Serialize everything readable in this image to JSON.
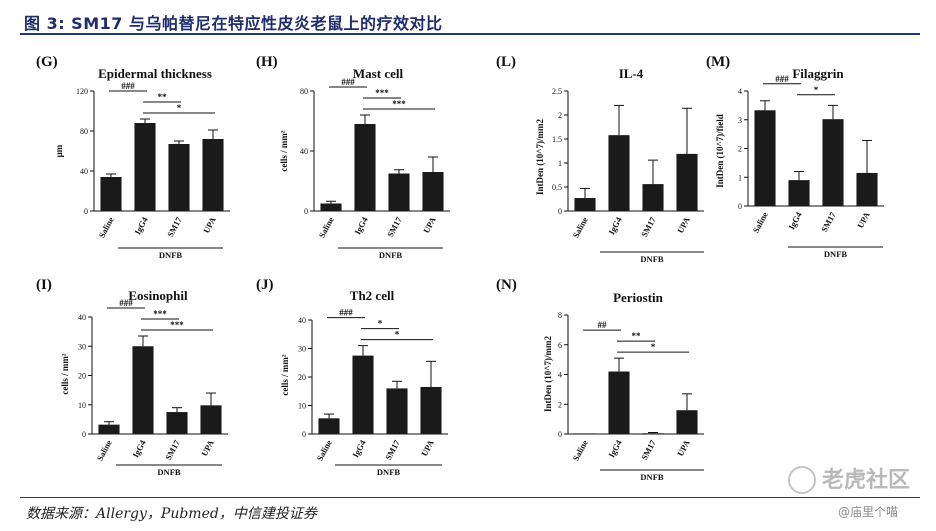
{
  "header": {
    "title": "图 3: SM17 与乌帕替尼在特应性皮炎老鼠上的疗效对比"
  },
  "footer": {
    "source": "数据来源：Allergy，Pubmed，中信建投证券"
  },
  "watermark": {
    "brand": "老虎社区",
    "user": "@庙里个喵"
  },
  "colors": {
    "bar": "#1a1a1a",
    "title": "#1f2d6b",
    "rule": "#1f3a7a"
  },
  "chart_data": [
    {
      "panel": "(G)",
      "title": "Epidermal thickness",
      "type": "bar",
      "ylabel": "μm",
      "ylim": [
        0,
        120
      ],
      "yticks": [
        "0",
        "40",
        "80",
        "120"
      ],
      "categories": [
        "Saline",
        "IgG4",
        "SM17",
        "UPA"
      ],
      "values": [
        34,
        88,
        67,
        72
      ],
      "errors": [
        3,
        4,
        3,
        9
      ],
      "group_label": "DNFB",
      "annotations": [
        {
          "from": 0,
          "to": 1,
          "label": "###"
        },
        {
          "from": 1,
          "to": 2,
          "label": "**"
        },
        {
          "from": 1,
          "to": 3,
          "label": "*"
        }
      ]
    },
    {
      "panel": "(H)",
      "title": "Mast cell",
      "type": "bar",
      "ylabel": "cells / mm²",
      "ylim": [
        0,
        80
      ],
      "yticks": [
        "0",
        "40",
        "80"
      ],
      "categories": [
        "Saline",
        "IgG4",
        "SM17",
        "UPA"
      ],
      "values": [
        5,
        58,
        25,
        26
      ],
      "errors": [
        1.5,
        6,
        2.5,
        10
      ],
      "group_label": "DNFB",
      "annotations": [
        {
          "from": 0,
          "to": 1,
          "label": "###"
        },
        {
          "from": 1,
          "to": 2,
          "label": "***"
        },
        {
          "from": 1,
          "to": 3,
          "label": "***"
        }
      ]
    },
    {
      "panel": "(L)",
      "title": "IL-4",
      "type": "bar",
      "ylabel": "IntDen (10^7)/mm2",
      "ylim": [
        0,
        2.5
      ],
      "yticks": [
        "0",
        "0.5",
        "1",
        "1.5",
        "2",
        "2.5"
      ],
      "categories": [
        "Saline",
        "IgG4",
        "SM17",
        "UPA"
      ],
      "values": [
        0.27,
        1.58,
        0.56,
        1.19
      ],
      "errors": [
        0.2,
        0.62,
        0.5,
        0.95
      ],
      "group_label": "DNFB",
      "annotations": []
    },
    {
      "panel": "(M)",
      "title": "Filaggrin",
      "type": "bar",
      "ylabel": "IntDen (10^7)/field",
      "ylim": [
        0,
        4
      ],
      "yticks": [
        "0",
        "1",
        "2",
        "3",
        "4"
      ],
      "categories": [
        "Saline",
        "IgG4",
        "SM17",
        "UPA"
      ],
      "values": [
        3.33,
        0.9,
        3.02,
        1.15
      ],
      "errors": [
        0.33,
        0.3,
        0.48,
        1.13
      ],
      "group_label": "DNFB",
      "annotations": [
        {
          "from": 0,
          "to": 1,
          "label": "###"
        },
        {
          "from": 1,
          "to": 2,
          "label": "*"
        }
      ]
    },
    {
      "panel": "(I)",
      "title": "Eosinophil",
      "type": "bar",
      "ylabel": "cells / mm²",
      "ylim": [
        0,
        40
      ],
      "yticks": [
        "0",
        "10",
        "20",
        "30",
        "40"
      ],
      "categories": [
        "Saline",
        "IgG4",
        "SM17",
        "UPA"
      ],
      "values": [
        3.2,
        30,
        7.5,
        9.8
      ],
      "errors": [
        1,
        3.5,
        1.5,
        4.2
      ],
      "group_label": "DNFB",
      "annotations": [
        {
          "from": 0,
          "to": 1,
          "label": "###"
        },
        {
          "from": 1,
          "to": 2,
          "label": "***"
        },
        {
          "from": 1,
          "to": 3,
          "label": "***"
        }
      ]
    },
    {
      "panel": "(J)",
      "title": "Th2 cell",
      "type": "bar",
      "ylabel": "cells / mm²",
      "ylim": [
        0,
        40
      ],
      "yticks": [
        "0",
        "10",
        "20",
        "30",
        "40"
      ],
      "categories": [
        "Saline",
        "IgG4",
        "SM17",
        "UPA"
      ],
      "values": [
        5.5,
        27.5,
        16,
        16.5
      ],
      "errors": [
        1.5,
        3.5,
        2.5,
        9
      ],
      "group_label": "DNFB",
      "annotations": [
        {
          "from": 0,
          "to": 1,
          "label": "###"
        },
        {
          "from": 1,
          "to": 2,
          "label": "*"
        },
        {
          "from": 1,
          "to": 3,
          "label": "*"
        }
      ]
    },
    {
      "panel": "(N)",
      "title": "Periostin",
      "type": "bar",
      "ylabel": "IntDen (10^7)/mm2",
      "ylim": [
        0,
        8
      ],
      "yticks": [
        "0",
        "2",
        "4",
        "6",
        "8"
      ],
      "categories": [
        "Saline",
        "IgG4",
        "SM17",
        "UPA"
      ],
      "values": [
        0,
        4.2,
        0.05,
        1.6
      ],
      "errors": [
        0,
        0.9,
        0.05,
        1.1
      ],
      "group_label": "DNFB",
      "annotations": [
        {
          "from": 0,
          "to": 1,
          "label": "##"
        },
        {
          "from": 1,
          "to": 2,
          "label": "**"
        },
        {
          "from": 1,
          "to": 3,
          "label": "*"
        }
      ]
    }
  ]
}
